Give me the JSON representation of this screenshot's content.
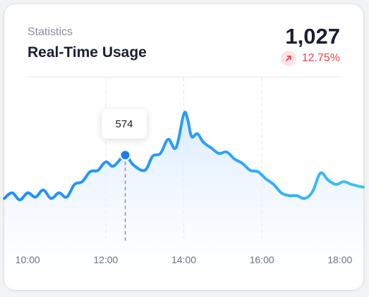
{
  "header": {
    "subtitle": "Statistics",
    "title": "Real-Time Usage",
    "total": "1,027",
    "change": "12.75%",
    "change_icon": "arrow-up-right-icon",
    "change_color": "#e5484d"
  },
  "tooltip": {
    "value": "574"
  },
  "colors": {
    "line": "#1e90ff",
    "line_light": "#3ec3f5",
    "area_top": "#d6e9ff",
    "marker": "#1a7cf0"
  },
  "chart_data": {
    "type": "area",
    "x_ticks": [
      "10:00",
      "12:00",
      "14:00",
      "16:00",
      "18:00"
    ],
    "x_range_hours": [
      9.4,
      18.6
    ],
    "highlight": {
      "x": 12.5,
      "value": 574
    },
    "x": [
      9.4,
      9.6,
      9.8,
      10.0,
      10.2,
      10.4,
      10.6,
      10.8,
      11.0,
      11.2,
      11.4,
      11.6,
      11.8,
      12.0,
      12.2,
      12.5,
      12.7,
      13.0,
      13.2,
      13.4,
      13.6,
      13.8,
      14.0,
      14.1,
      14.2,
      14.35,
      14.5,
      14.7,
      14.9,
      15.1,
      15.3,
      15.5,
      15.7,
      15.9,
      16.1,
      16.3,
      16.5,
      16.7,
      16.9,
      17.1,
      17.3,
      17.5,
      17.7,
      17.9,
      18.1,
      18.3,
      18.6
    ],
    "values": [
      420,
      440,
      415,
      440,
      425,
      450,
      420,
      440,
      425,
      470,
      480,
      515,
      520,
      550,
      535,
      574,
      540,
      520,
      570,
      580,
      630,
      600,
      720,
      700,
      640,
      650,
      620,
      600,
      580,
      585,
      560,
      545,
      520,
      515,
      490,
      470,
      440,
      430,
      430,
      420,
      445,
      510,
      485,
      470,
      480,
      470,
      460
    ]
  }
}
